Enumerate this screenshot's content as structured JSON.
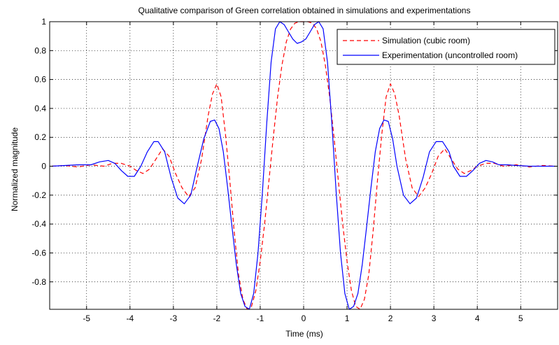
{
  "chart_data": {
    "type": "line",
    "title": "Qualitative comparison of Green correlation obtained in simulations and experimentations",
    "xlabel": "Time (ms)",
    "ylabel": "Normalized magnitude",
    "xlim": [
      -5.85,
      5.85
    ],
    "ylim": [
      -0.99,
      1.0
    ],
    "xticks": [
      -5,
      -4,
      -3,
      -2,
      -1,
      0,
      1,
      2,
      3,
      4,
      5
    ],
    "yticks": [
      -0.8,
      -0.6,
      -0.4,
      -0.2,
      0,
      0.2,
      0.4,
      0.6,
      0.8,
      1
    ],
    "grid": true,
    "legend_position": "top-right",
    "series": [
      {
        "name": "Simulation (cubic room)",
        "color": "#ff0000",
        "style": "dashed",
        "x": [
          -5.8,
          -5.5,
          -5.2,
          -4.9,
          -4.6,
          -4.4,
          -4.2,
          -4.0,
          -3.85,
          -3.7,
          -3.55,
          -3.4,
          -3.25,
          -3.1,
          -2.95,
          -2.8,
          -2.65,
          -2.5,
          -2.35,
          -2.2,
          -2.1,
          -2.0,
          -1.9,
          -1.8,
          -1.7,
          -1.6,
          -1.5,
          -1.4,
          -1.3,
          -1.2,
          -1.1,
          -1.0,
          -0.9,
          -0.8,
          -0.7,
          -0.6,
          -0.5,
          -0.4,
          -0.3,
          -0.2,
          -0.1,
          0.0,
          0.1,
          0.2,
          0.3,
          0.4,
          0.5,
          0.6,
          0.7,
          0.8,
          0.9,
          1.0,
          1.1,
          1.2,
          1.3,
          1.4,
          1.5,
          1.6,
          1.7,
          1.8,
          1.9,
          2.0,
          2.1,
          2.2,
          2.35,
          2.5,
          2.65,
          2.8,
          2.95,
          3.1,
          3.25,
          3.4,
          3.55,
          3.7,
          3.85,
          4.0,
          4.2,
          4.4,
          4.6,
          4.9,
          5.2,
          5.5,
          5.8
        ],
        "y": [
          0.0,
          0.005,
          -0.005,
          0.01,
          0.0,
          0.02,
          0.02,
          0.0,
          -0.03,
          -0.05,
          -0.02,
          0.05,
          0.12,
          0.07,
          -0.05,
          -0.15,
          -0.21,
          -0.15,
          0.05,
          0.35,
          0.5,
          0.57,
          0.48,
          0.22,
          -0.1,
          -0.45,
          -0.75,
          -0.92,
          -0.99,
          -0.97,
          -0.86,
          -0.66,
          -0.4,
          -0.1,
          0.2,
          0.48,
          0.7,
          0.86,
          0.95,
          0.99,
          1.0,
          1.0,
          1.0,
          0.99,
          0.95,
          0.86,
          0.7,
          0.48,
          0.2,
          -0.1,
          -0.4,
          -0.66,
          -0.86,
          -0.97,
          -0.99,
          -0.92,
          -0.75,
          -0.45,
          -0.1,
          0.22,
          0.48,
          0.57,
          0.5,
          0.35,
          0.05,
          -0.15,
          -0.21,
          -0.15,
          -0.05,
          0.07,
          0.12,
          0.05,
          -0.02,
          -0.05,
          -0.03,
          0.0,
          0.02,
          0.02,
          0.0,
          0.01,
          -0.005,
          0.005,
          0.0
        ]
      },
      {
        "name": "Experimentation (uncontrolled room)",
        "color": "#0000ff",
        "style": "solid",
        "x": [
          -5.8,
          -5.5,
          -5.2,
          -4.9,
          -4.7,
          -4.5,
          -4.35,
          -4.2,
          -4.05,
          -3.9,
          -3.75,
          -3.6,
          -3.45,
          -3.35,
          -3.2,
          -3.05,
          -2.9,
          -2.75,
          -2.6,
          -2.45,
          -2.3,
          -2.15,
          -2.05,
          -1.95,
          -1.85,
          -1.75,
          -1.65,
          -1.55,
          -1.45,
          -1.35,
          -1.25,
          -1.15,
          -1.05,
          -0.95,
          -0.85,
          -0.75,
          -0.65,
          -0.55,
          -0.45,
          -0.35,
          -0.25,
          -0.15,
          -0.05,
          0.0,
          0.05,
          0.15,
          0.25,
          0.35,
          0.45,
          0.55,
          0.65,
          0.75,
          0.85,
          0.95,
          1.05,
          1.15,
          1.25,
          1.35,
          1.45,
          1.55,
          1.65,
          1.75,
          1.85,
          1.95,
          2.05,
          2.15,
          2.3,
          2.45,
          2.6,
          2.75,
          2.9,
          3.05,
          3.2,
          3.35,
          3.45,
          3.6,
          3.75,
          3.9,
          4.05,
          4.2,
          4.35,
          4.5,
          4.7,
          4.9,
          5.2,
          5.5,
          5.8
        ],
        "y": [
          0.0,
          0.005,
          0.01,
          0.01,
          0.03,
          0.04,
          0.02,
          -0.03,
          -0.07,
          -0.07,
          0.0,
          0.1,
          0.17,
          0.17,
          0.1,
          -0.08,
          -0.22,
          -0.26,
          -0.2,
          0.0,
          0.19,
          0.31,
          0.32,
          0.26,
          0.1,
          -0.15,
          -0.42,
          -0.68,
          -0.88,
          -0.97,
          -0.99,
          -0.88,
          -0.6,
          -0.18,
          0.3,
          0.72,
          0.95,
          1.0,
          0.98,
          0.93,
          0.88,
          0.85,
          0.86,
          0.87,
          0.88,
          0.93,
          0.98,
          1.0,
          0.95,
          0.72,
          0.3,
          -0.18,
          -0.6,
          -0.88,
          -0.99,
          -0.97,
          -0.88,
          -0.68,
          -0.42,
          -0.15,
          0.1,
          0.26,
          0.32,
          0.31,
          0.19,
          0.0,
          -0.2,
          -0.26,
          -0.22,
          -0.08,
          0.1,
          0.17,
          0.17,
          0.1,
          0.0,
          -0.07,
          -0.07,
          -0.03,
          0.02,
          0.04,
          0.03,
          0.01,
          0.01,
          0.005,
          0.0,
          0.0,
          0.0
        ]
      }
    ]
  }
}
